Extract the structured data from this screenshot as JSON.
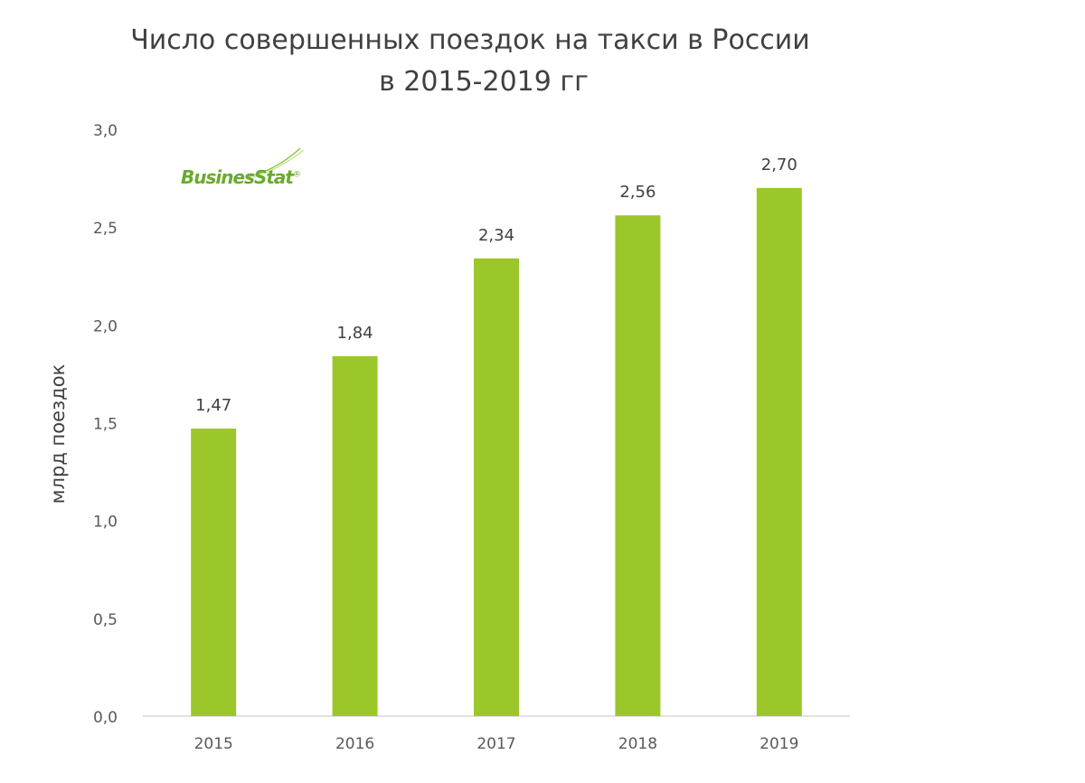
{
  "chart_data": {
    "type": "bar",
    "title_lines": [
      "Число совершенных поездок на такси в России",
      "в 2015-2019 гг"
    ],
    "xlabel": "",
    "ylabel": "млрд поездок",
    "categories": [
      "2015",
      "2016",
      "2017",
      "2018",
      "2019"
    ],
    "values": [
      1.47,
      1.84,
      2.34,
      2.56,
      2.7
    ],
    "value_labels": [
      "1,47",
      "1,84",
      "2,34",
      "2,56",
      "2,70"
    ],
    "ylim": [
      0,
      3.0
    ],
    "yticks": [
      0,
      0.5,
      1.0,
      1.5,
      2.0,
      2.5,
      3.0
    ],
    "ytick_labels": [
      "0,0",
      "0,5",
      "1,0",
      "1,5",
      "2,0",
      "2,5",
      "3,0"
    ],
    "grid": false,
    "legend": "none",
    "bar_color": "#9bc72a"
  },
  "logo": {
    "text": "BusinesStat",
    "registered": "®",
    "color": "#6aaa2e"
  }
}
